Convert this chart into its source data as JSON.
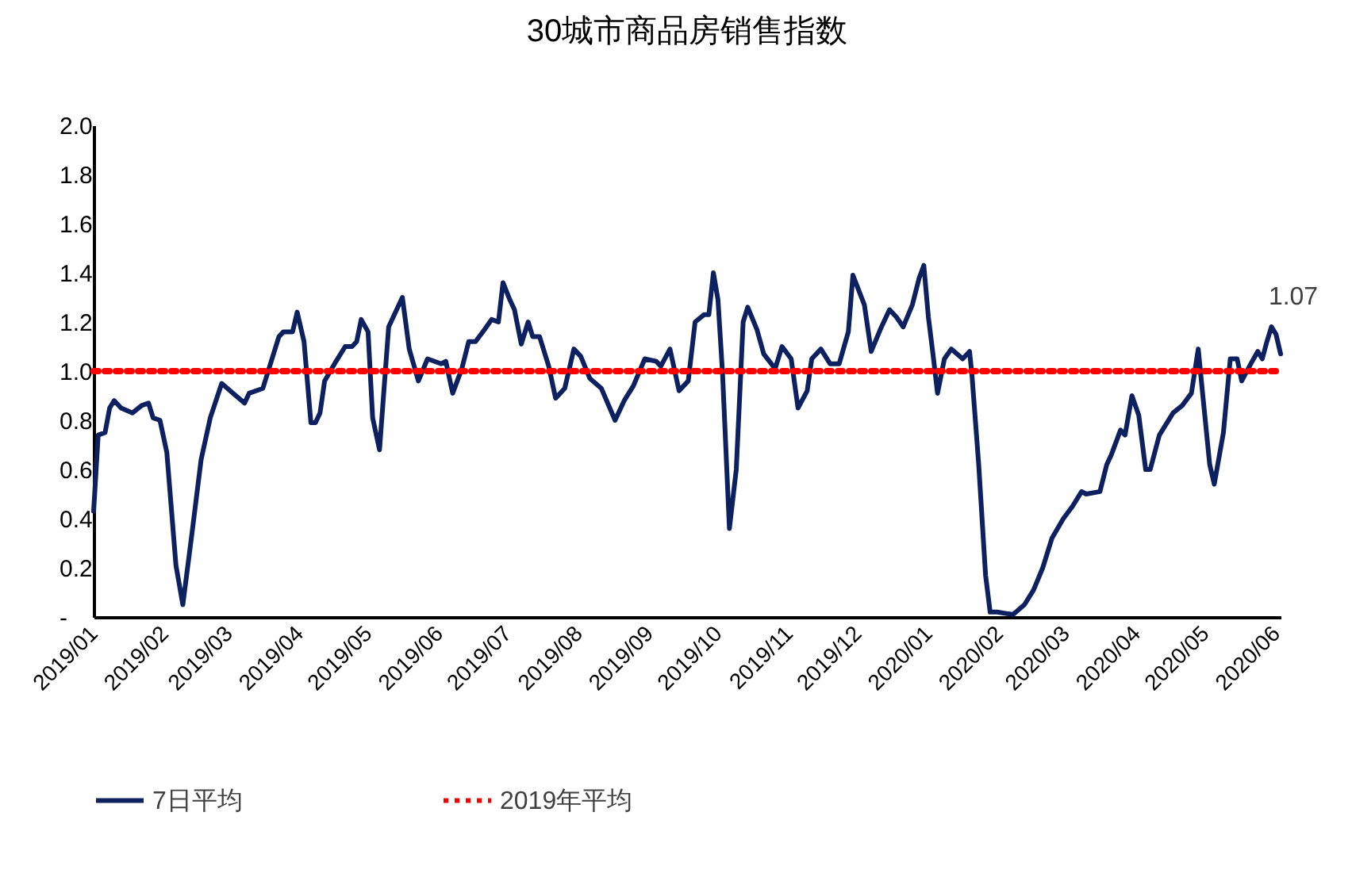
{
  "chart_data": {
    "type": "line",
    "title": "30城市商品房销售指数",
    "x": [
      "2019-01-01",
      "2019-01-03",
      "2019-01-06",
      "2019-01-08",
      "2019-01-10",
      "2019-01-13",
      "2019-01-18",
      "2019-01-22",
      "2019-01-25",
      "2019-01-27",
      "2019-01-30",
      "2019-02-02",
      "2019-02-06",
      "2019-02-09",
      "2019-02-13",
      "2019-02-17",
      "2019-02-21",
      "2019-02-26",
      "2019-03-03",
      "2019-03-08",
      "2019-03-10",
      "2019-03-16",
      "2019-03-18",
      "2019-03-23",
      "2019-03-25",
      "2019-03-29",
      "2019-03-31",
      "2019-04-03",
      "2019-04-06",
      "2019-04-08",
      "2019-04-10",
      "2019-04-12",
      "2019-04-17",
      "2019-04-21",
      "2019-04-24",
      "2019-04-26",
      "2019-04-28",
      "2019-05-01",
      "2019-05-03",
      "2019-05-06",
      "2019-05-10",
      "2019-05-16",
      "2019-05-19",
      "2019-05-23",
      "2019-05-27",
      "2019-06-02",
      "2019-06-04",
      "2019-06-07",
      "2019-06-11",
      "2019-06-14",
      "2019-06-17",
      "2019-06-21",
      "2019-06-24",
      "2019-06-27",
      "2019-06-29",
      "2019-07-02",
      "2019-07-04",
      "2019-07-07",
      "2019-07-10",
      "2019-07-12",
      "2019-07-15",
      "2019-07-19",
      "2019-07-22",
      "2019-07-26",
      "2019-07-30",
      "2019-08-02",
      "2019-08-06",
      "2019-08-11",
      "2019-08-17",
      "2019-08-21",
      "2019-08-25",
      "2019-08-30",
      "2019-09-04",
      "2019-09-06",
      "2019-09-10",
      "2019-09-14",
      "2019-09-18",
      "2019-09-21",
      "2019-09-25",
      "2019-09-27",
      "2019-09-29",
      "2019-10-01",
      "2019-10-03",
      "2019-10-06",
      "2019-10-09",
      "2019-10-12",
      "2019-10-14",
      "2019-10-18",
      "2019-10-21",
      "2019-10-26",
      "2019-10-29",
      "2019-11-02",
      "2019-11-05",
      "2019-11-09",
      "2019-11-11",
      "2019-11-15",
      "2019-11-19",
      "2019-11-23",
      "2019-11-27",
      "2019-11-29",
      "2019-12-04",
      "2019-12-07",
      "2019-12-11",
      "2019-12-15",
      "2019-12-18",
      "2019-12-21",
      "2019-12-25",
      "2019-12-28",
      "2019-12-30",
      "2020-01-01",
      "2020-01-03",
      "2020-01-05",
      "2020-01-08",
      "2020-01-11",
      "2020-01-16",
      "2020-01-19",
      "2020-01-20",
      "2020-01-23",
      "2020-01-26",
      "2020-01-28",
      "2020-01-31",
      "2020-02-07",
      "2020-02-12",
      "2020-02-16",
      "2020-02-20",
      "2020-02-24",
      "2020-02-29",
      "2020-03-04",
      "2020-03-08",
      "2020-03-10",
      "2020-03-16",
      "2020-03-19",
      "2020-03-21",
      "2020-03-25",
      "2020-03-27",
      "2020-03-30",
      "2020-04-02",
      "2020-04-05",
      "2020-04-07",
      "2020-04-11",
      "2020-04-17",
      "2020-04-21",
      "2020-04-25",
      "2020-04-28",
      "2020-04-30",
      "2020-05-03",
      "2020-05-05",
      "2020-05-09",
      "2020-05-12",
      "2020-05-15",
      "2020-05-17",
      "2020-05-21",
      "2020-05-24",
      "2020-05-26",
      "2020-05-28",
      "2020-05-30",
      "2020-06-01",
      "2020-06-03"
    ],
    "series": [
      {
        "name": "7日平均",
        "color": "#0d2160",
        "values": [
          0.43,
          0.74,
          0.75,
          0.85,
          0.88,
          0.85,
          0.83,
          0.86,
          0.87,
          0.81,
          0.8,
          0.67,
          0.21,
          0.05,
          0.34,
          0.64,
          0.81,
          0.95,
          0.91,
          0.87,
          0.91,
          0.93,
          0.99,
          1.14,
          1.16,
          1.16,
          1.24,
          1.12,
          0.79,
          0.79,
          0.83,
          0.96,
          1.04,
          1.1,
          1.1,
          1.12,
          1.21,
          1.16,
          0.81,
          0.68,
          1.18,
          1.3,
          1.09,
          0.96,
          1.05,
          1.03,
          1.04,
          0.91,
          1.01,
          1.12,
          1.12,
          1.17,
          1.21,
          1.2,
          1.36,
          1.29,
          1.25,
          1.11,
          1.2,
          1.14,
          1.14,
          1.02,
          0.89,
          0.93,
          1.09,
          1.06,
          0.97,
          0.93,
          0.8,
          0.88,
          0.94,
          1.05,
          1.04,
          1.02,
          1.09,
          0.92,
          0.96,
          1.2,
          1.23,
          1.23,
          1.4,
          1.29,
          0.99,
          0.36,
          0.6,
          1.2,
          1.26,
          1.17,
          1.07,
          1.01,
          1.1,
          1.05,
          0.85,
          0.92,
          1.05,
          1.09,
          1.03,
          1.03,
          1.16,
          1.39,
          1.27,
          1.08,
          1.17,
          1.25,
          1.22,
          1.18,
          1.27,
          1.38,
          1.43,
          1.22,
          1.07,
          0.91,
          1.05,
          1.09,
          1.05,
          1.08,
          0.99,
          0.62,
          0.17,
          0.02,
          0.02,
          0.01,
          0.05,
          0.11,
          0.2,
          0.32,
          0.4,
          0.45,
          0.51,
          0.5,
          0.51,
          0.62,
          0.66,
          0.76,
          0.74,
          0.9,
          0.82,
          0.6,
          0.6,
          0.74,
          0.83,
          0.86,
          0.91,
          1.09,
          0.9,
          0.62,
          0.54,
          0.75,
          1.05,
          1.05,
          0.96,
          1.03,
          1.08,
          1.05,
          1.12,
          1.18,
          1.15,
          1.07
        ]
      }
    ],
    "ref_lines": [
      {
        "axis": "y",
        "value": 1.0,
        "label": "2019年平均",
        "color": "#ff0000",
        "line_style": "dotted"
      }
    ],
    "annotations": [
      {
        "text": "1.07",
        "x": "2020-06-03",
        "y": 1.07
      }
    ],
    "xlim": [
      "2019-01-01",
      "2020-06-03"
    ],
    "xticks": [
      {
        "value": "2019-01",
        "label": "2019/01"
      },
      {
        "value": "2019-02",
        "label": "2019/02"
      },
      {
        "value": "2019-03",
        "label": "2019/03"
      },
      {
        "value": "2019-04",
        "label": "2019/04"
      },
      {
        "value": "2019-05",
        "label": "2019/05"
      },
      {
        "value": "2019-06",
        "label": "2019/06"
      },
      {
        "value": "2019-07",
        "label": "2019/07"
      },
      {
        "value": "2019-08",
        "label": "2019/08"
      },
      {
        "value": "2019-09",
        "label": "2019/09"
      },
      {
        "value": "2019-10",
        "label": "2019/10"
      },
      {
        "value": "2019-11",
        "label": "2019/11"
      },
      {
        "value": "2019-12",
        "label": "2019/12"
      },
      {
        "value": "2020-01",
        "label": "2020/01"
      },
      {
        "value": "2020-02",
        "label": "2020/02"
      },
      {
        "value": "2020-03",
        "label": "2020/03"
      },
      {
        "value": "2020-04",
        "label": "2020/04"
      },
      {
        "value": "2020-05",
        "label": "2020/05"
      },
      {
        "value": "2020-06",
        "label": "2020/06"
      }
    ],
    "ylim": [
      0,
      2.0
    ],
    "yticks": [
      {
        "value": 0,
        "label": "-"
      },
      0.2,
      0.4,
      0.6,
      0.8,
      {
        "value": 1,
        "label": "1.0"
      },
      1.2,
      1.4,
      1.6,
      1.8,
      {
        "value": 2,
        "label": "2.0"
      }
    ],
    "grid": false,
    "legend": "bottom",
    "line_style": "solid",
    "marker": "none"
  }
}
